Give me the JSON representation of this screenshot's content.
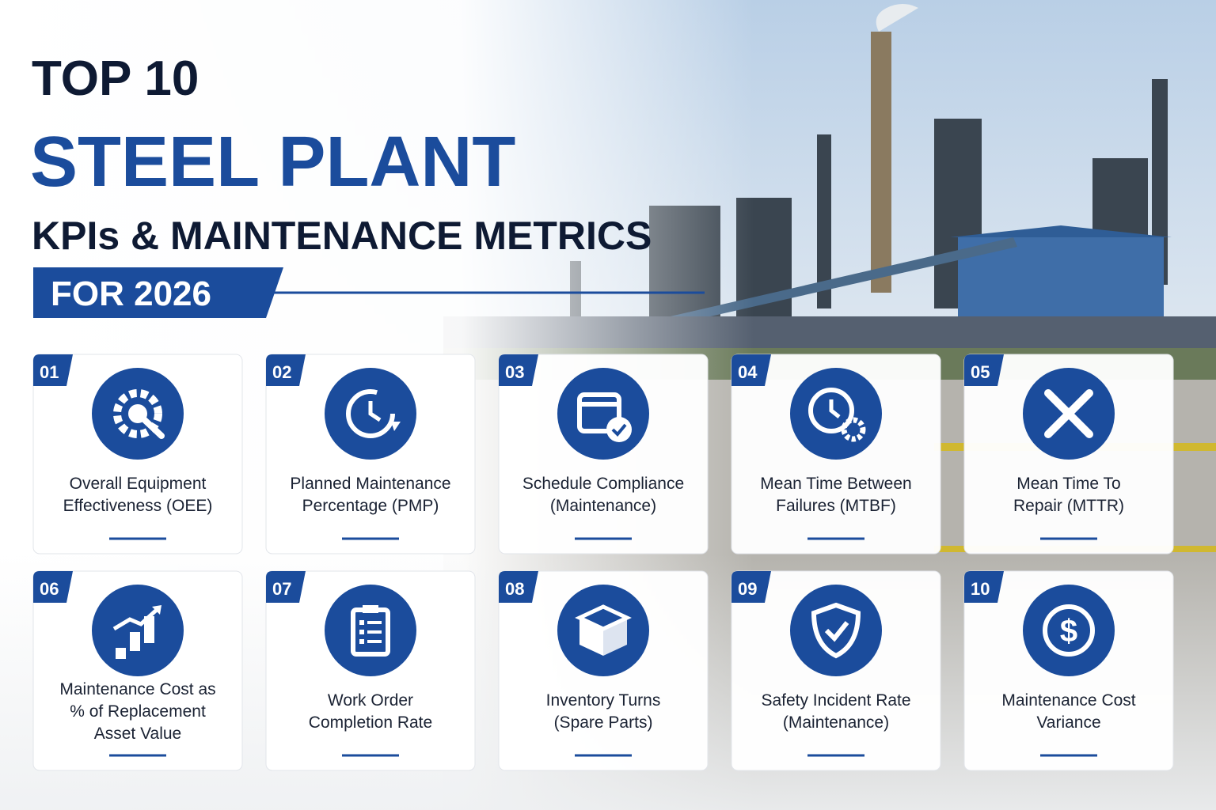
{
  "header": {
    "line1": "TOP 10",
    "line2": "STEEL PLANT",
    "line3": "KPIs & MAINTENANCE METRICS",
    "badge": "FOR 2026"
  },
  "cards": [
    {
      "number": "01",
      "label": [
        "Overall Equipment",
        "Effectiveness (OEE)"
      ]
    },
    {
      "number": "02",
      "label": [
        "Planned Maintenance",
        "Percentage (PMP)"
      ]
    },
    {
      "number": "03",
      "label": [
        "Schedule Compliance",
        "(Maintenance)"
      ]
    },
    {
      "number": "04",
      "label": [
        "Mean Time Between",
        "Failures (MTBF)"
      ]
    },
    {
      "number": "05",
      "label": [
        "Mean Time To",
        "Repair (MTTR)"
      ]
    },
    {
      "number": "06",
      "label": [
        "Maintenance Cost as",
        "% of Replacement",
        "Asset Value"
      ]
    },
    {
      "number": "07",
      "label": [
        "Work Order",
        "Completion Rate"
      ]
    },
    {
      "number": "08",
      "label": [
        "Inventory Turns",
        "(Spare Parts)"
      ]
    },
    {
      "number": "09",
      "label": [
        "Safety Incident Rate",
        "(Maintenance)"
      ]
    },
    {
      "number": "10",
      "label": [
        "Maintenance Cost",
        "Variance"
      ]
    }
  ]
}
